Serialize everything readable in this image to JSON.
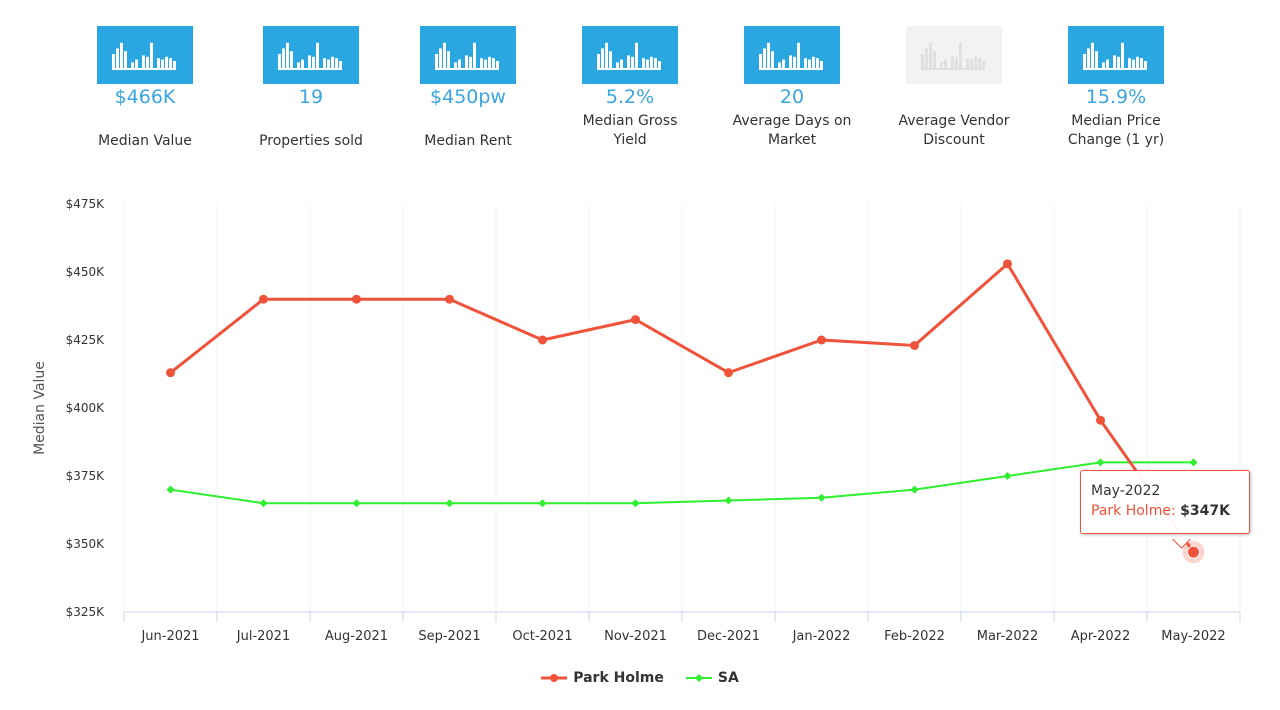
{
  "stats": [
    {
      "value": "$466K",
      "label": "Median Value",
      "muted": false
    },
    {
      "value": "19",
      "label": "Properties sold",
      "muted": false
    },
    {
      "value": "$450pw",
      "label": "Median Rent",
      "muted": false
    },
    {
      "value": "5.2%",
      "label": "Median Gross Yield",
      "muted": false
    },
    {
      "value": "20",
      "label": "Average Days on Market",
      "muted": false
    },
    {
      "value": "",
      "label": "Average Vendor Discount",
      "muted": true
    },
    {
      "value": "15.9%",
      "label": "Median Price Change (1 yr)",
      "muted": false
    }
  ],
  "colors": {
    "icon_bg": "#2aa7e0",
    "stat_value": "#3aa5de",
    "park_holme": "#f0533b",
    "sa": "#2ef02e"
  },
  "chart_data": {
    "type": "line",
    "title": "",
    "xlabel": "",
    "ylabel": "Median Value",
    "categories": [
      "Jun-2021",
      "Jul-2021",
      "Aug-2021",
      "Sep-2021",
      "Oct-2021",
      "Nov-2021",
      "Dec-2021",
      "Jan-2022",
      "Feb-2022",
      "Mar-2022",
      "Apr-2022",
      "May-2022"
    ],
    "ylim": [
      325000,
      475000
    ],
    "yticks": [
      325000,
      350000,
      375000,
      400000,
      425000,
      450000,
      475000
    ],
    "ytick_labels": [
      "$325K",
      "$350K",
      "$375K",
      "$400K",
      "$425K",
      "$450K",
      "$475K"
    ],
    "series": [
      {
        "name": "Park Holme",
        "color": "#f0533b",
        "marker": "circle",
        "values": [
          413000,
          440000,
          440000,
          440000,
          425000,
          432500,
          413000,
          425000,
          423000,
          453000,
          395500,
          347000
        ]
      },
      {
        "name": "SA",
        "color": "#2ef02e",
        "marker": "diamond",
        "values": [
          370000,
          365000,
          365000,
          365000,
          365000,
          365000,
          366000,
          367000,
          370000,
          375000,
          380000,
          380000
        ]
      }
    ],
    "legend": "bottom-center",
    "grid": "vertical"
  },
  "tooltip": {
    "category": "May-2022",
    "series": "Park Holme",
    "separator": ":",
    "value": "$347K"
  }
}
